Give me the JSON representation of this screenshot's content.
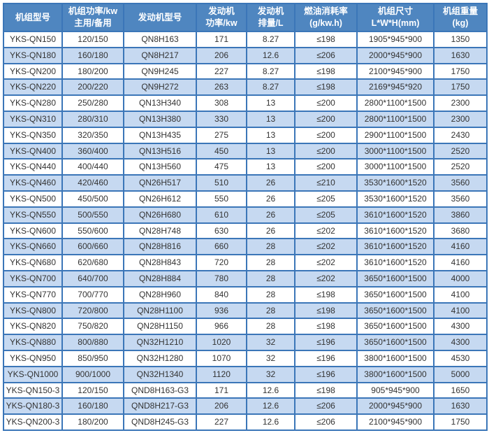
{
  "colors": {
    "header_bg": "#4f86c0",
    "header_text": "#ffffff",
    "row_bg": "#ffffff",
    "row_alt_bg": "#c6d9f1",
    "border_color": "#3b76b8",
    "cell_text": "#333333"
  },
  "table": {
    "columns": [
      {
        "key": "model",
        "label_lines": [
          "机组型号"
        ]
      },
      {
        "key": "power",
        "label_lines": [
          "机组功率/kw",
          "主用/备用"
        ]
      },
      {
        "key": "engine-model",
        "label_lines": [
          "发动机型号"
        ]
      },
      {
        "key": "engine-power",
        "label_lines": [
          "发动机",
          "功率/kw"
        ]
      },
      {
        "key": "displacement",
        "label_lines": [
          "发动机",
          "排量/L"
        ]
      },
      {
        "key": "fuel-rate",
        "label_lines": [
          "燃油消耗率",
          "(g/kw.h)"
        ]
      },
      {
        "key": "dimensions",
        "label_lines": [
          "机组尺寸",
          "L*W*H(mm)"
        ]
      },
      {
        "key": "weight",
        "label_lines": [
          "机组重量",
          "(kg)"
        ]
      }
    ],
    "rows": [
      [
        "YKS-QN150",
        "120/150",
        "QN8H163",
        "171",
        "8.27",
        "≤198",
        "1905*945*900",
        "1350"
      ],
      [
        "YKS-QN180",
        "160/180",
        "QN8H217",
        "206",
        "12.6",
        "≤206",
        "2000*945*900",
        "1630"
      ],
      [
        "YKS-QN200",
        "180/200",
        "QN9H245",
        "227",
        "8.27",
        "≤198",
        "2100*945*900",
        "1750"
      ],
      [
        "YKS-QN220",
        "200/220",
        "QN9H272",
        "263",
        "8.27",
        "≤198",
        "2169*945*920",
        "1750"
      ],
      [
        "YKS-QN280",
        "250/280",
        "QN13H340",
        "308",
        "13",
        "≤200",
        "2800*1100*1500",
        "2300"
      ],
      [
        "YKS-QN310",
        "280/310",
        "QN13H380",
        "330",
        "13",
        "≤200",
        "2800*1100*1500",
        "2300"
      ],
      [
        "YKS-QN350",
        "320/350",
        "QN13H435",
        "275",
        "13",
        "≤200",
        "2900*1100*1500",
        "2430"
      ],
      [
        "YKS-QN400",
        "360/400",
        "QN13H516",
        "450",
        "13",
        "≤200",
        "3000*1100*1500",
        "2520"
      ],
      [
        "YKS-QN440",
        "400/440",
        "QN13H560",
        "475",
        "13",
        "≤200",
        "3000*1100*1500",
        "2520"
      ],
      [
        "YKS-QN460",
        "420/460",
        "QN26H517",
        "510",
        "26",
        "≤210",
        "3530*1600*1520",
        "3560"
      ],
      [
        "YKS-QN500",
        "450/500",
        "QN26H612",
        "550",
        "26",
        "≤205",
        "3530*1600*1520",
        "3560"
      ],
      [
        "YKS-QN550",
        "500/550",
        "QN26H680",
        "610",
        "26",
        "≤205",
        "3610*1600*1520",
        "3860"
      ],
      [
        "YKS-QN600",
        "550/600",
        "QN28H748",
        "630",
        "26",
        "≤202",
        "3610*1600*1520",
        "3680"
      ],
      [
        "YKS-QN660",
        "600/660",
        "QN28H816",
        "660",
        "28",
        "≤202",
        "3610*1600*1520",
        "4160"
      ],
      [
        "YKS-QN680",
        "620/680",
        "QN28H843",
        "720",
        "28",
        "≤202",
        "3610*1600*1520",
        "4160"
      ],
      [
        "YKS-QN700",
        "640/700",
        "QN28H884",
        "780",
        "28",
        "≤202",
        "3650*1600*1500",
        "4000"
      ],
      [
        "YKS-QN770",
        "700/770",
        "QN28H960",
        "840",
        "28",
        "≤198",
        "3650*1600*1500",
        "4100"
      ],
      [
        "YKS-QN800",
        "720/800",
        "QN28H1100",
        "936",
        "28",
        "≤198",
        "3650*1600*1500",
        "4100"
      ],
      [
        "YKS-QN820",
        "750/820",
        "QN28H1150",
        "966",
        "28",
        "≤198",
        "3650*1600*1500",
        "4300"
      ],
      [
        "YKS-QN880",
        "800/880",
        "QN32H1210",
        "1020",
        "32",
        "≤196",
        "3650*1600*1500",
        "4300"
      ],
      [
        "YKS-QN950",
        "850/950",
        "QN32H1280",
        "1070",
        "32",
        "≤196",
        "3800*1600*1500",
        "4530"
      ],
      [
        "YKS-QN1000",
        "900/1000",
        "QN32H1340",
        "1120",
        "32",
        "≤196",
        "3800*1600*1500",
        "5000"
      ],
      [
        "YKS-QN150-3",
        "120/150",
        "QND8H163-G3",
        "171",
        "12.6",
        "≤198",
        "905*945*900",
        "1650"
      ],
      [
        "YKS-QN180-3",
        "160/180",
        "QND8H217-G3",
        "206",
        "12.6",
        "≤206",
        "2000*945*900",
        "1630"
      ],
      [
        "YKS-QN200-3",
        "180/200",
        "QND8H245-G3",
        "227",
        "12.6",
        "≤206",
        "2100*945*900",
        "1750"
      ]
    ]
  }
}
